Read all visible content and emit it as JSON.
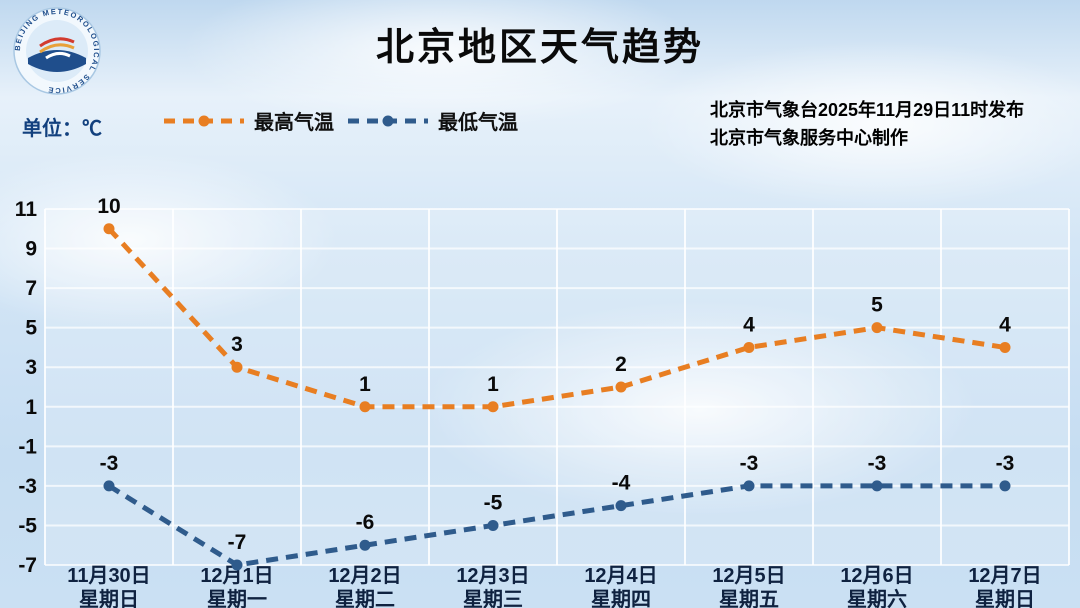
{
  "title": "北京地区天气趋势",
  "unit_label": "单位：℃",
  "logo_ring_text": "BEIJING METEOROLOGICAL SERVICE",
  "legend": [
    {
      "label": "最高气温",
      "color": "#E87E22"
    },
    {
      "label": "最低气温",
      "color": "#2F5B8C"
    }
  ],
  "publisher_line1": "北京市气象台2025年11月29日11时发布",
  "publisher_line2": "北京市气象服务中心制作",
  "chart_data": {
    "type": "line",
    "line_style": "dashed",
    "grid": true,
    "legend_position": "top",
    "categories": [
      "11月30日",
      "12月1日",
      "12月2日",
      "12月3日",
      "12月4日",
      "12月5日",
      "12月6日",
      "12月7日"
    ],
    "weekdays": [
      "星期日",
      "星期一",
      "星期二",
      "星期三",
      "星期四",
      "星期五",
      "星期六",
      "星期日"
    ],
    "series": [
      {
        "name": "最高气温",
        "color": "#E87E22",
        "values": [
          10,
          3,
          1,
          1,
          2,
          4,
          5,
          4
        ]
      },
      {
        "name": "最低气温",
        "color": "#2F5B8C",
        "values": [
          -3,
          -7,
          -6,
          -5,
          -4,
          -3,
          -3,
          -3
        ]
      }
    ],
    "yticks": [
      11,
      9,
      7,
      5,
      3,
      1,
      -1,
      -3,
      -5,
      -7
    ],
    "ylim": [
      -7,
      11
    ]
  }
}
